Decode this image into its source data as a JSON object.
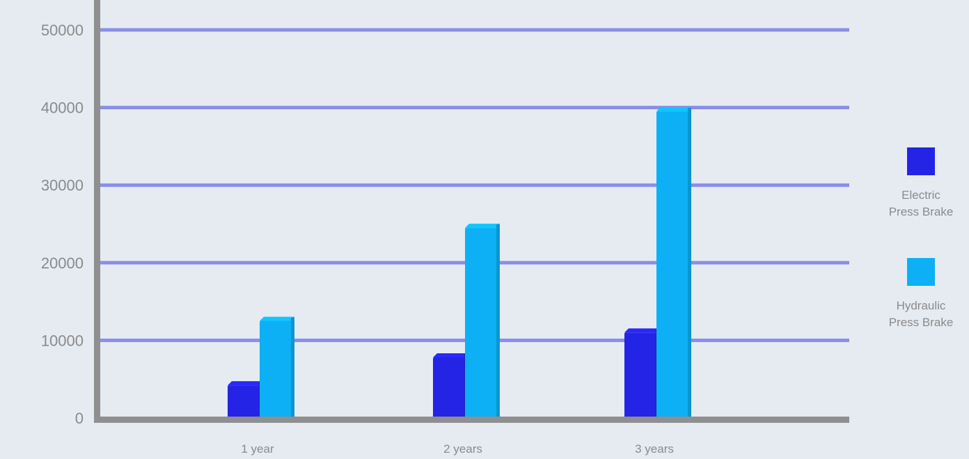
{
  "chart_data": {
    "type": "bar",
    "categories": [
      "1 year",
      "2 years",
      "3 years"
    ],
    "series": [
      {
        "name": "Electric Press Brake",
        "values": [
          4200,
          7800,
          11000
        ],
        "color": "#2424e6"
      },
      {
        "name": "Hydraulic Press Brake",
        "values": [
          12500,
          24500,
          39500
        ],
        "color": "#0db0f5"
      }
    ],
    "y_ticks": [
      "0",
      "10000",
      "20000",
      "30000",
      "40000",
      "50000"
    ],
    "ylim": [
      0,
      50000
    ],
    "grid": true,
    "legend_position": "right",
    "legend": [
      {
        "line1": "Electric",
        "line2": "Press Brake"
      },
      {
        "line1": "Hydraulic",
        "line2": "Press Brake"
      }
    ],
    "colors": {
      "background": "#e6ebf2",
      "gridline": "#8a8ee8",
      "axis": "#8f8f8f",
      "tick_text": "#8a8a8a"
    }
  }
}
